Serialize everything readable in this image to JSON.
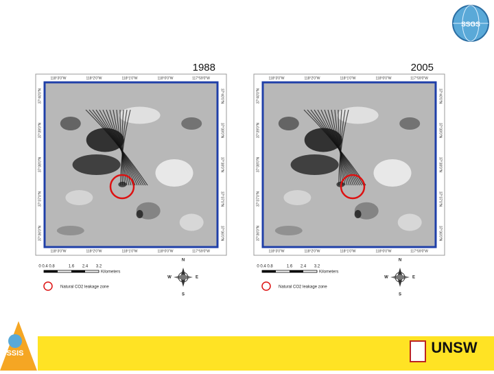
{
  "logo_top": "SSGS",
  "panels": [
    {
      "year": "1988",
      "top_labels": [
        "118°3'0\"W",
        "118°2'0\"W",
        "118°1'0\"W",
        "118°0'0\"W",
        "117°59'0\"W"
      ],
      "left_labels": [
        "37°40'0\"N",
        "37°39'0\"N",
        "37°38'0\"N",
        "37°37'0\"N",
        "37°36'0\"N"
      ],
      "scale_ticks": [
        "0 0.4 0.8",
        "1.6",
        "2.4",
        "3.2"
      ],
      "scale_unit": "Kilometers",
      "legend": "Natural CO2 leakage zone",
      "compass": [
        "N",
        "S",
        "E",
        "W"
      ]
    },
    {
      "year": "2005",
      "top_labels": [
        "118°3'0\"W",
        "118°2'0\"W",
        "118°1'0\"W",
        "118°0'0\"W",
        "117°59'0\"W"
      ],
      "left_labels": [
        "37°40'0\"N",
        "37°39'0\"N",
        "37°38'0\"N",
        "37°37'0\"N",
        "37°36'0\"N"
      ],
      "scale_ticks": [
        "0 0.4 0.8",
        "1.6",
        "2.4",
        "3.2"
      ],
      "scale_unit": "Kilometers",
      "legend": "Natural CO2 leakage zone",
      "compass": [
        "N",
        "S",
        "E",
        "W"
      ]
    }
  ],
  "footer": {
    "left_logo": "SSIS",
    "right_logo": "UNSW"
  }
}
